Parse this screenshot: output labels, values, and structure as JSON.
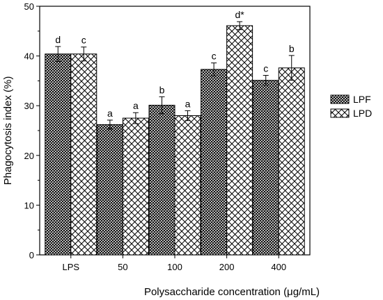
{
  "chart_data": {
    "type": "bar",
    "title": "",
    "xlabel": "Polysaccharide concentration (μg/mL)",
    "ylabel": "Phagocytosis index (%)",
    "ylim": [
      0,
      50
    ],
    "yticks": [
      0,
      10,
      20,
      30,
      40,
      50
    ],
    "categories": [
      "LPS",
      "50",
      "100",
      "200",
      "400"
    ],
    "legend_position": "right",
    "series": [
      {
        "name": "LPF",
        "pattern": "dense-crosshatch",
        "values": [
          40.4,
          26.2,
          30.1,
          37.3,
          35.1
        ],
        "errors": [
          1.5,
          0.9,
          1.7,
          1.3,
          1.0
        ],
        "labels": [
          "d",
          "a",
          "b",
          "c",
          "c"
        ]
      },
      {
        "name": "LPD",
        "pattern": "open-crosshatch",
        "values": [
          40.4,
          27.5,
          28.0,
          46.1,
          37.6
        ],
        "errors": [
          1.4,
          1.1,
          1.0,
          0.8,
          2.5
        ],
        "labels": [
          "c",
          "a",
          "a",
          "d*",
          "b"
        ]
      }
    ]
  }
}
